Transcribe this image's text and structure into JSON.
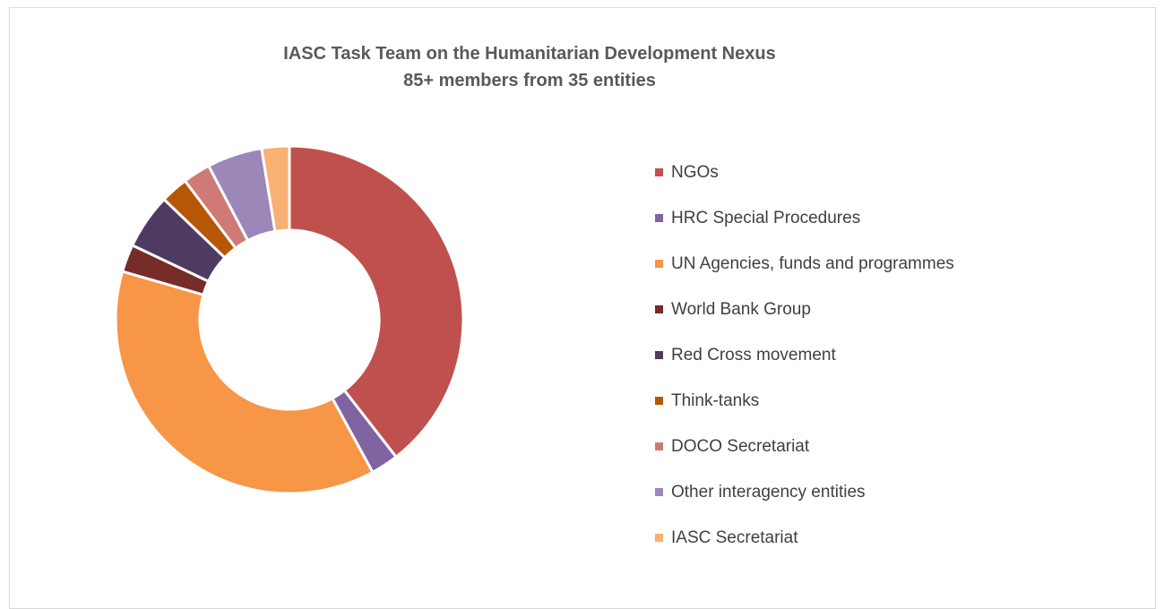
{
  "chart_data": {
    "type": "pie",
    "variant": "donut",
    "title": "IASC Task Team on the Humanitarian Development Nexus",
    "subtitle": "85+ members from 35 entities",
    "legend_position": "right",
    "series": [
      {
        "categories": [
          "NGOs",
          "HRC Special Procedures",
          "UN Agencies, funds and programmes",
          "World Bank Group",
          "Red Cross movement",
          "Think-tanks",
          "DOCO Secretariat",
          "Other interagency entities",
          "IASC Secretariat"
        ],
        "values": [
          38.5,
          2.5,
          36.5,
          2.5,
          5.0,
          2.5,
          2.5,
          5.0,
          2.5
        ],
        "colors": [
          "#c0504d",
          "#8064a2",
          "#f79646",
          "#772c2a",
          "#4f3b62",
          "#b65708",
          "#d07a78",
          "#9b87b8",
          "#f8b073"
        ]
      }
    ]
  }
}
